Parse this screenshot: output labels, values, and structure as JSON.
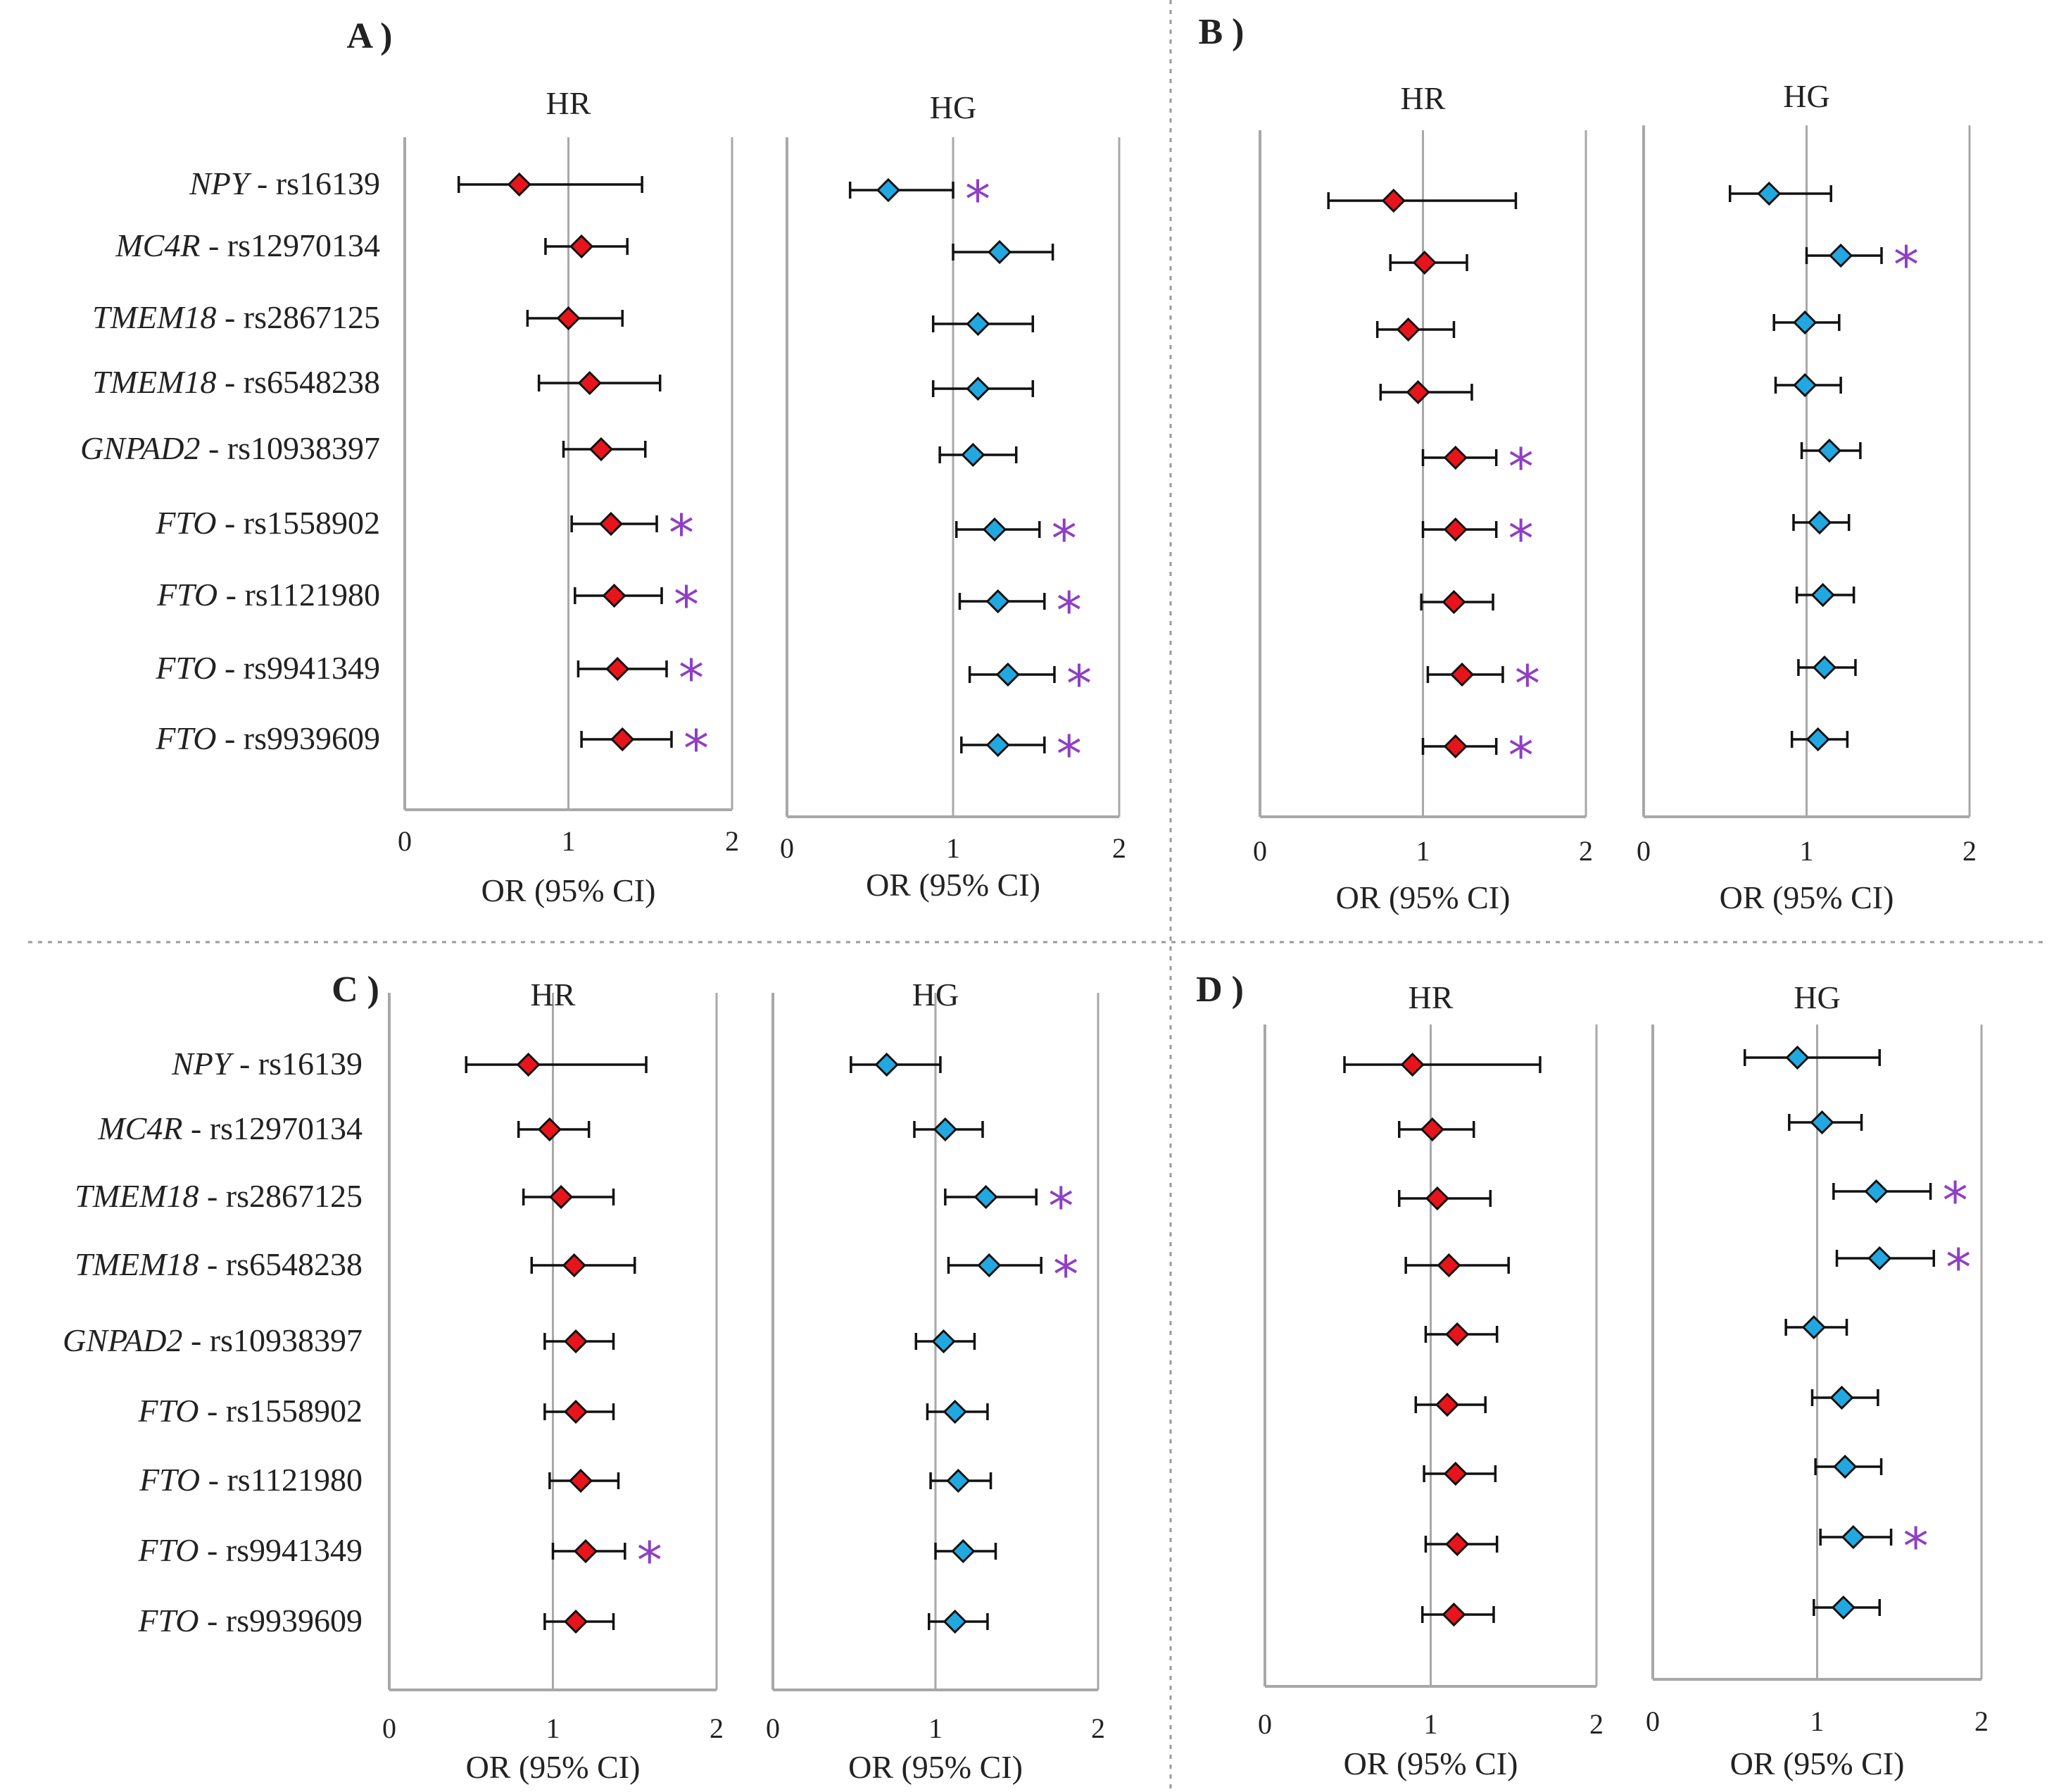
{
  "figure": {
    "snps": [
      {
        "gene": "NPY",
        "snp": "rs16139"
      },
      {
        "gene": "MC4R",
        "snp": "rs12970134"
      },
      {
        "gene": "TMEM18",
        "snp": "rs2867125"
      },
      {
        "gene": "TMEM18",
        "snp": "rs6548238"
      },
      {
        "gene": "GNPAD2",
        "snp": "rs10938397"
      },
      {
        "gene": "FTO",
        "snp": "rs1558902"
      },
      {
        "gene": "FTO",
        "snp": "rs1121980"
      },
      {
        "gene": "FTO",
        "snp": "rs9941349"
      },
      {
        "gene": "FTO",
        "snp": "rs9939609"
      }
    ],
    "label_separator": "-",
    "significance_marker": "*",
    "colors": {
      "HR": "#e8141b",
      "HG": "#22a8e0",
      "asterisk": "#8e3fc4",
      "axis": "#a8a8a8",
      "divider": "#9a9a9a",
      "text": "#222222"
    }
  },
  "chart_data": [
    {
      "panel": "A )",
      "type": "forest",
      "xlabel": "OR (95% CI)",
      "xlim": [
        0,
        2
      ],
      "xticks": [
        "0",
        "1",
        "2"
      ],
      "reference_line": 1,
      "subplots": [
        {
          "name": "HR",
          "points": [
            {
              "or": 0.7,
              "low": 0.33,
              "high": 1.45,
              "sig": false
            },
            {
              "or": 1.08,
              "low": 0.86,
              "high": 1.36,
              "sig": false
            },
            {
              "or": 1.0,
              "low": 0.75,
              "high": 1.33,
              "sig": false
            },
            {
              "or": 1.13,
              "low": 0.82,
              "high": 1.56,
              "sig": false
            },
            {
              "or": 1.2,
              "low": 0.97,
              "high": 1.47,
              "sig": false
            },
            {
              "or": 1.26,
              "low": 1.02,
              "high": 1.54,
              "sig": true
            },
            {
              "or": 1.28,
              "low": 1.04,
              "high": 1.57,
              "sig": true
            },
            {
              "or": 1.3,
              "low": 1.06,
              "high": 1.6,
              "sig": true
            },
            {
              "or": 1.33,
              "low": 1.08,
              "high": 1.63,
              "sig": true
            }
          ]
        },
        {
          "name": "HG",
          "points": [
            {
              "or": 0.61,
              "low": 0.38,
              "high": 1.0,
              "sig": true
            },
            {
              "or": 1.28,
              "low": 1.0,
              "high": 1.6,
              "sig": false
            },
            {
              "or": 1.15,
              "low": 0.88,
              "high": 1.48,
              "sig": false
            },
            {
              "or": 1.15,
              "low": 0.88,
              "high": 1.48,
              "sig": false
            },
            {
              "or": 1.12,
              "low": 0.92,
              "high": 1.38,
              "sig": false
            },
            {
              "or": 1.25,
              "low": 1.02,
              "high": 1.52,
              "sig": true
            },
            {
              "or": 1.27,
              "low": 1.04,
              "high": 1.55,
              "sig": true
            },
            {
              "or": 1.33,
              "low": 1.1,
              "high": 1.61,
              "sig": true
            },
            {
              "or": 1.27,
              "low": 1.05,
              "high": 1.55,
              "sig": true
            }
          ]
        }
      ]
    },
    {
      "panel": "B )",
      "type": "forest",
      "xlabel": "OR (95% CI)",
      "xlim": [
        0,
        2
      ],
      "xticks": [
        "0",
        "1",
        "2"
      ],
      "reference_line": 1,
      "subplots": [
        {
          "name": "HR",
          "points": [
            {
              "or": 0.82,
              "low": 0.42,
              "high": 1.57,
              "sig": false
            },
            {
              "or": 1.01,
              "low": 0.8,
              "high": 1.27,
              "sig": false
            },
            {
              "or": 0.91,
              "low": 0.72,
              "high": 1.19,
              "sig": false
            },
            {
              "or": 0.97,
              "low": 0.74,
              "high": 1.3,
              "sig": false
            },
            {
              "or": 1.2,
              "low": 1.0,
              "high": 1.45,
              "sig": true
            },
            {
              "or": 1.2,
              "low": 1.0,
              "high": 1.45,
              "sig": true
            },
            {
              "or": 1.19,
              "low": 0.99,
              "high": 1.43,
              "sig": false
            },
            {
              "or": 1.24,
              "low": 1.03,
              "high": 1.49,
              "sig": true
            },
            {
              "or": 1.2,
              "low": 1.0,
              "high": 1.45,
              "sig": true
            }
          ]
        },
        {
          "name": "HG",
          "points": [
            {
              "or": 0.77,
              "low": 0.53,
              "high": 1.15,
              "sig": false
            },
            {
              "or": 1.21,
              "low": 1.0,
              "high": 1.46,
              "sig": true
            },
            {
              "or": 0.99,
              "low": 0.8,
              "high": 1.2,
              "sig": false
            },
            {
              "or": 0.99,
              "low": 0.81,
              "high": 1.21,
              "sig": false
            },
            {
              "or": 1.14,
              "low": 0.97,
              "high": 1.33,
              "sig": false
            },
            {
              "or": 1.08,
              "low": 0.92,
              "high": 1.26,
              "sig": false
            },
            {
              "or": 1.1,
              "low": 0.94,
              "high": 1.29,
              "sig": false
            },
            {
              "or": 1.11,
              "low": 0.95,
              "high": 1.3,
              "sig": false
            },
            {
              "or": 1.07,
              "low": 0.91,
              "high": 1.25,
              "sig": false
            }
          ]
        }
      ]
    },
    {
      "panel": "C )",
      "type": "forest",
      "xlabel": "OR (95% CI)",
      "xlim": [
        0,
        2
      ],
      "xticks": [
        "0",
        "1",
        "2"
      ],
      "reference_line": 1,
      "subplots": [
        {
          "name": "HR",
          "points": [
            {
              "or": 0.85,
              "low": 0.47,
              "high": 1.57,
              "sig": false
            },
            {
              "or": 0.98,
              "low": 0.79,
              "high": 1.22,
              "sig": false
            },
            {
              "or": 1.05,
              "low": 0.82,
              "high": 1.37,
              "sig": false
            },
            {
              "or": 1.13,
              "low": 0.87,
              "high": 1.5,
              "sig": false
            },
            {
              "or": 1.14,
              "low": 0.95,
              "high": 1.37,
              "sig": false
            },
            {
              "or": 1.14,
              "low": 0.95,
              "high": 1.37,
              "sig": false
            },
            {
              "or": 1.17,
              "low": 0.98,
              "high": 1.4,
              "sig": false
            },
            {
              "or": 1.2,
              "low": 1.0,
              "high": 1.44,
              "sig": true
            },
            {
              "or": 1.14,
              "low": 0.95,
              "high": 1.37,
              "sig": false
            }
          ]
        },
        {
          "name": "HG",
          "points": [
            {
              "or": 0.7,
              "low": 0.48,
              "high": 1.03,
              "sig": false
            },
            {
              "or": 1.06,
              "low": 0.87,
              "high": 1.29,
              "sig": false
            },
            {
              "or": 1.31,
              "low": 1.06,
              "high": 1.62,
              "sig": true
            },
            {
              "or": 1.33,
              "low": 1.08,
              "high": 1.65,
              "sig": true
            },
            {
              "or": 1.05,
              "low": 0.88,
              "high": 1.24,
              "sig": false
            },
            {
              "or": 1.12,
              "low": 0.95,
              "high": 1.32,
              "sig": false
            },
            {
              "or": 1.14,
              "low": 0.97,
              "high": 1.34,
              "sig": false
            },
            {
              "or": 1.17,
              "low": 1.0,
              "high": 1.37,
              "sig": false
            },
            {
              "or": 1.12,
              "low": 0.96,
              "high": 1.32,
              "sig": false
            }
          ]
        }
      ]
    },
    {
      "panel": "D )",
      "type": "forest",
      "xlabel": "OR (95% CI)",
      "xlim": [
        0,
        2
      ],
      "xticks": [
        "0",
        "1",
        "2"
      ],
      "reference_line": 1,
      "subplots": [
        {
          "name": "HR",
          "points": [
            {
              "or": 0.89,
              "low": 0.48,
              "high": 1.66,
              "sig": false
            },
            {
              "or": 1.01,
              "low": 0.81,
              "high": 1.26,
              "sig": false
            },
            {
              "or": 1.04,
              "low": 0.81,
              "high": 1.36,
              "sig": false
            },
            {
              "or": 1.11,
              "low": 0.85,
              "high": 1.47,
              "sig": false
            },
            {
              "or": 1.16,
              "low": 0.97,
              "high": 1.4,
              "sig": false
            },
            {
              "or": 1.1,
              "low": 0.91,
              "high": 1.33,
              "sig": false
            },
            {
              "or": 1.15,
              "low": 0.96,
              "high": 1.39,
              "sig": false
            },
            {
              "or": 1.16,
              "low": 0.97,
              "high": 1.4,
              "sig": false
            },
            {
              "or": 1.14,
              "low": 0.95,
              "high": 1.38,
              "sig": false
            }
          ]
        },
        {
          "name": "HG",
          "points": [
            {
              "or": 0.88,
              "low": 0.56,
              "high": 1.38,
              "sig": false
            },
            {
              "or": 1.03,
              "low": 0.83,
              "high": 1.27,
              "sig": false
            },
            {
              "or": 1.36,
              "low": 1.1,
              "high": 1.69,
              "sig": true
            },
            {
              "or": 1.38,
              "low": 1.12,
              "high": 1.71,
              "sig": true
            },
            {
              "or": 0.98,
              "low": 0.81,
              "high": 1.18,
              "sig": false
            },
            {
              "or": 1.15,
              "low": 0.97,
              "high": 1.37,
              "sig": false
            },
            {
              "or": 1.17,
              "low": 0.99,
              "high": 1.39,
              "sig": false
            },
            {
              "or": 1.22,
              "low": 1.02,
              "high": 1.45,
              "sig": true
            },
            {
              "or": 1.16,
              "low": 0.98,
              "high": 1.38,
              "sig": false
            }
          ]
        }
      ]
    }
  ]
}
